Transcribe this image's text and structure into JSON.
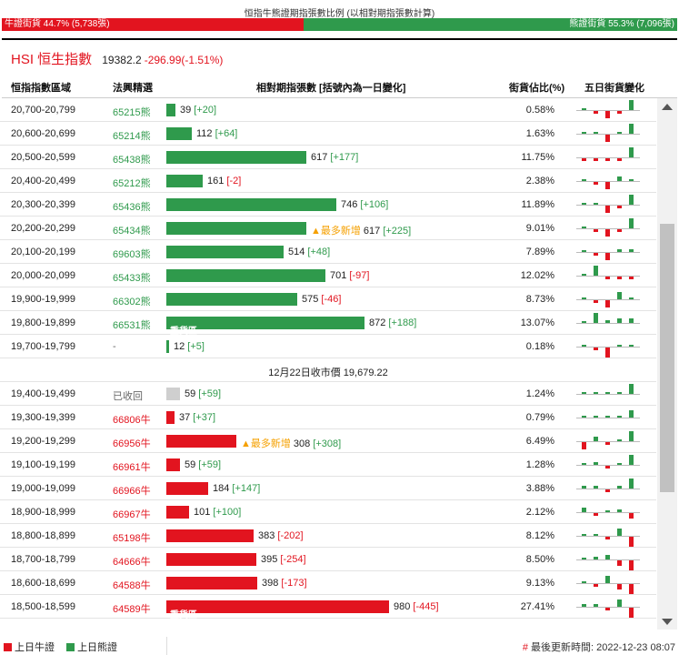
{
  "header": {
    "title": "恒指牛熊證期指張數比例 (以相對期指張數計算)",
    "bull_label": "牛證街貨 44.7% (5,738張)",
    "bear_label": "熊證街貨 55.3% (7,096張)",
    "bull_share": 0.447,
    "colors": {
      "bull": "#e2141f",
      "bear": "#2f9a4c",
      "new": "#f5a000"
    }
  },
  "index": {
    "name": "HSI 恒生指數",
    "price": "19382.2",
    "change": "-296.99(-1.51%)"
  },
  "columns": {
    "range": "恒指指數區域",
    "code": "法興精選",
    "qty": "相對期指張數 [括號內為一日變化]",
    "pct": "街貨佔比(%)",
    "five_day": "五日街貨變化"
  },
  "rows": [
    {
      "type": "row",
      "range": "20,700-20,799",
      "code": "65215熊",
      "side": "bear",
      "qty": "39",
      "delta": "[+20]",
      "pct": "0.58%",
      "bar_value": 39,
      "spark": [
        0,
        -1,
        -3,
        -1,
        4
      ]
    },
    {
      "type": "row",
      "range": "20,600-20,699",
      "code": "65214熊",
      "side": "bear",
      "qty": "112",
      "delta": "[+64]",
      "pct": "1.63%",
      "bar_value": 112,
      "spark": [
        0,
        0,
        -3,
        0,
        4
      ]
    },
    {
      "type": "row",
      "range": "20,500-20,599",
      "code": "65438熊",
      "side": "bear",
      "qty": "617",
      "delta": "[+177]",
      "pct": "11.75%",
      "bar_value": 617,
      "spark": [
        -1,
        -1,
        -1,
        -1,
        4
      ]
    },
    {
      "type": "row",
      "range": "20,400-20,499",
      "code": "65212熊",
      "side": "bear",
      "qty": "161",
      "delta": "[-2]",
      "pct": "2.38%",
      "bar_value": 161,
      "spark": [
        0,
        -1,
        -3,
        2,
        0
      ]
    },
    {
      "type": "row",
      "range": "20,300-20,399",
      "code": "65436熊",
      "side": "bear",
      "qty": "746",
      "delta": "[+106]",
      "pct": "11.89%",
      "bar_value": 746,
      "spark": [
        0,
        0,
        -3,
        -1,
        4
      ]
    },
    {
      "type": "row",
      "range": "20,200-20,299",
      "code": "65434熊",
      "side": "bear",
      "qty": "617",
      "delta": "[+225]",
      "pct": "9.01%",
      "bar_value": 617,
      "badge": "▲最多新增",
      "spark": [
        0,
        -1,
        -3,
        -1,
        4
      ]
    },
    {
      "type": "row",
      "range": "20,100-20,199",
      "code": "69603熊",
      "side": "bear",
      "qty": "514",
      "delta": "[+48]",
      "pct": "7.89%",
      "bar_value": 514,
      "spark": [
        0,
        -1,
        -3,
        1,
        1
      ]
    },
    {
      "type": "row",
      "range": "20,000-20,099",
      "code": "65433熊",
      "side": "bear",
      "qty": "701",
      "delta": "[-97]",
      "pct": "12.02%",
      "bar_value": 701,
      "spark": [
        0,
        4,
        -1,
        -1,
        -1
      ]
    },
    {
      "type": "row",
      "range": "19,900-19,999",
      "code": "66302熊",
      "side": "bear",
      "qty": "575",
      "delta": "[-46]",
      "pct": "8.73%",
      "bar_value": 575,
      "spark": [
        0,
        -1,
        -3,
        3,
        0
      ]
    },
    {
      "type": "row",
      "range": "19,800-19,899",
      "code": "66531熊",
      "side": "bear",
      "qty": "872",
      "delta": "[+188]",
      "pct": "13.07%",
      "bar_value": 872,
      "tag": "重貨區",
      "spark": [
        0,
        4,
        1,
        2,
        2
      ]
    },
    {
      "type": "row",
      "range": "19,700-19,799",
      "code": "-",
      "side": "bear",
      "qty": "12",
      "delta": "[+5]",
      "pct": "0.18%",
      "bar_value": 12,
      "spark": [
        0,
        -1,
        -4,
        0,
        0
      ]
    },
    {
      "type": "price",
      "text": "12月22日收市價 19,679.22"
    },
    {
      "type": "row",
      "range": "19,400-19,499",
      "code": "已收回",
      "side": "plain",
      "qty": "59",
      "delta": "[+59]",
      "pct": "1.24%",
      "bar_value": 59,
      "spark": [
        0,
        0,
        0,
        0,
        4
      ]
    },
    {
      "type": "row",
      "range": "19,300-19,399",
      "code": "66806牛",
      "side": "bull",
      "qty": "37",
      "delta": "[+37]",
      "pct": "0.79%",
      "bar_value": 37,
      "spark": [
        0,
        0,
        0,
        0,
        3
      ]
    },
    {
      "type": "row",
      "range": "19,200-19,299",
      "code": "66956牛",
      "side": "bull",
      "qty": "308",
      "delta": "[+308]",
      "pct": "6.49%",
      "bar_value": 308,
      "badge": "▲最多新增",
      "spark": [
        -3,
        2,
        -1,
        0,
        4
      ]
    },
    {
      "type": "row",
      "range": "19,100-19,199",
      "code": "66961牛",
      "side": "bull",
      "qty": "59",
      "delta": "[+59]",
      "pct": "1.28%",
      "bar_value": 59,
      "spark": [
        0,
        1,
        -1,
        0,
        4
      ]
    },
    {
      "type": "row",
      "range": "19,000-19,099",
      "code": "66966牛",
      "side": "bull",
      "qty": "184",
      "delta": "[+147]",
      "pct": "3.88%",
      "bar_value": 184,
      "spark": [
        1,
        1,
        -1,
        1,
        4
      ]
    },
    {
      "type": "row",
      "range": "18,900-18,999",
      "code": "66967牛",
      "side": "bull",
      "qty": "101",
      "delta": "[+100]",
      "pct": "2.12%",
      "bar_value": 101,
      "spark": [
        2,
        -1,
        0,
        1,
        -2
      ]
    },
    {
      "type": "row",
      "range": "18,800-18,899",
      "code": "65198牛",
      "side": "bull",
      "qty": "383",
      "delta": "[-202]",
      "pct": "8.12%",
      "bar_value": 383,
      "spark": [
        0,
        0,
        -1,
        3,
        -4
      ]
    },
    {
      "type": "row",
      "range": "18,700-18,799",
      "code": "64666牛",
      "side": "bull",
      "qty": "395",
      "delta": "[-254]",
      "pct": "8.50%",
      "bar_value": 395,
      "spark": [
        0,
        1,
        2,
        -2,
        -4
      ]
    },
    {
      "type": "row",
      "range": "18,600-18,699",
      "code": "64588牛",
      "side": "bull",
      "qty": "398",
      "delta": "[-173]",
      "pct": "9.13%",
      "bar_value": 398,
      "spark": [
        0,
        -1,
        3,
        -2,
        -4
      ]
    },
    {
      "type": "row",
      "range": "18,500-18,599",
      "code": "64589牛",
      "side": "bull",
      "qty": "980",
      "delta": "[-445]",
      "pct": "27.41%",
      "bar_value": 980,
      "tag": "重貨區",
      "spark": [
        1,
        1,
        -1,
        3,
        -4
      ]
    }
  ],
  "footer": {
    "legend_bull": "上日牛證",
    "legend_bear": "上日熊證",
    "update_hash": "#",
    "update_text": "最後更新時間: 2022-12-23 08:07"
  }
}
